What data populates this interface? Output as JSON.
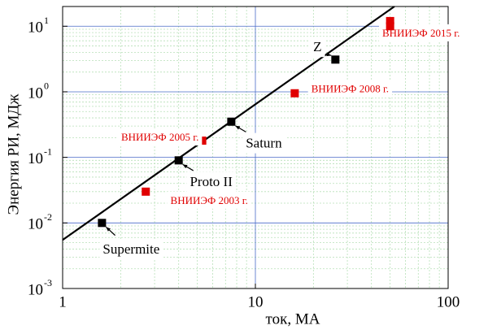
{
  "chart_data": {
    "type": "scatter",
    "xlabel": "ток, МА",
    "ylabel": "Энергия РИ, МДж",
    "xscale": "log",
    "yscale": "log",
    "xlim": [
      1,
      100
    ],
    "ylim": [
      0.001,
      20
    ],
    "xticks": [
      1,
      10,
      100
    ],
    "yticks": [
      {
        "value": 0.001,
        "label": "10",
        "exponent": "-3"
      },
      {
        "value": 0.01,
        "label": "10",
        "exponent": "-2"
      },
      {
        "value": 0.1,
        "label": "10",
        "exponent": "-1"
      },
      {
        "value": 1,
        "label": "10",
        "exponent": "0"
      },
      {
        "value": 10,
        "label": "10",
        "exponent": "1"
      }
    ],
    "grid": true,
    "points": [
      {
        "x": 1.6,
        "y": 0.01,
        "label": "Supermite",
        "color": "#000000"
      },
      {
        "x": 4,
        "y": 0.09,
        "label": "Proto II",
        "color": "#000000"
      },
      {
        "x": 7.5,
        "y": 0.35,
        "label": "Saturn",
        "color": "#000000"
      },
      {
        "x": 26,
        "y": 3.1,
        "label": "Z",
        "color": "#000000"
      },
      {
        "x": 2.7,
        "y": 0.03,
        "label": "ВНИИЭФ 2003 г.",
        "color": "#e00000"
      },
      {
        "x": 5.3,
        "y": 0.18,
        "label": "ВНИИЭФ 2005 г.",
        "color": "#e00000"
      },
      {
        "x": 16,
        "y": 0.95,
        "label": "ВНИИЭФ 2008 г.",
        "color": "#e00000"
      },
      {
        "x": 50,
        "y": 12,
        "label": "ВНИИЭФ 2015 г.",
        "color": "#e00000"
      },
      {
        "x": 50,
        "y": 10,
        "color": "#e00000"
      }
    ],
    "fit_line": {
      "x": [
        1,
        52.6
      ],
      "y": [
        0.0055,
        20
      ],
      "color": "#000000"
    }
  }
}
